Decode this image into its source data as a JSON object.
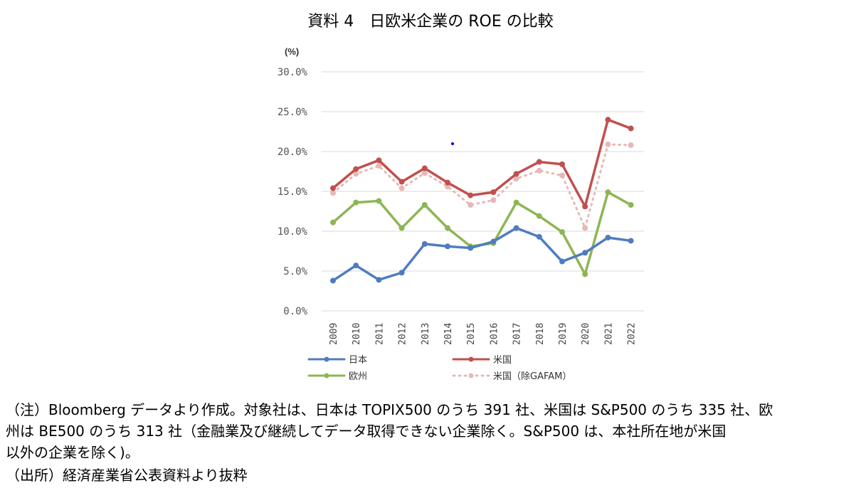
{
  "chart_data": {
    "type": "line",
    "title": "資料 4　日欧米企業の ROE の比較",
    "ylabel": "(%)",
    "ylim": [
      0,
      30
    ],
    "yticks": [
      "0.0%",
      "5.0%",
      "10.0%",
      "15.0%",
      "20.0%",
      "25.0%",
      "30.0%"
    ],
    "grid": true,
    "legend_position": "bottom",
    "categories": [
      "2009",
      "2010",
      "2011",
      "2012",
      "2013",
      "2014",
      "2015",
      "2016",
      "2017",
      "2018",
      "2019",
      "2020",
      "2021",
      "2022"
    ],
    "series": [
      {
        "name": "日本",
        "color": "#4f7cc0",
        "dash": false,
        "values": [
          3.8,
          5.7,
          3.9,
          4.8,
          8.4,
          8.1,
          7.9,
          8.7,
          10.4,
          9.3,
          6.2,
          7.3,
          9.2,
          8.8
        ]
      },
      {
        "name": "米国",
        "color": "#c0504d",
        "dash": false,
        "values": [
          15.4,
          17.8,
          18.9,
          16.2,
          17.9,
          16.1,
          14.5,
          14.9,
          17.2,
          18.7,
          18.4,
          13.1,
          24.0,
          22.9
        ]
      },
      {
        "name": "欧州",
        "color": "#8db653",
        "dash": false,
        "values": [
          11.1,
          13.6,
          13.8,
          10.4,
          13.3,
          10.4,
          8.1,
          8.5,
          13.6,
          11.9,
          9.9,
          4.6,
          14.9,
          13.3
        ]
      },
      {
        "name": "米国（除GAFAM）",
        "color": "#e6b9b8",
        "dash": true,
        "values": [
          14.8,
          17.2,
          18.2,
          15.4,
          17.3,
          15.6,
          13.3,
          13.9,
          16.6,
          17.6,
          17.0,
          10.4,
          20.9,
          20.8
        ]
      }
    ]
  },
  "notes": [
    "（注）Bloomberg データより作成。対象社は、日本は TOPIX500 のうち 391 社、米国は S&P500 のうち 335 社、欧",
    "州は BE500 のうち 313 社（金融業及び継続してデータ取得できない企業除く。S&P500 は、本社所在地が米国",
    "以外の企業を除く)。",
    "（出所）経済産業省公表資料より抜粋"
  ]
}
